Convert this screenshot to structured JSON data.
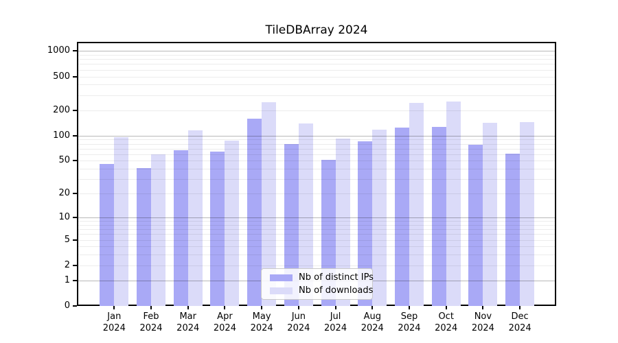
{
  "title": "TileDBArray 2024",
  "chart_data": {
    "type": "bar",
    "title": "TileDBArray 2024",
    "y_scale": "log10(value+1)",
    "categories": [
      "Jan",
      "Feb",
      "Mar",
      "Apr",
      "May",
      "Jun",
      "Jul",
      "Aug",
      "Sep",
      "Oct",
      "Nov",
      "Dec"
    ],
    "x_year": "2024",
    "series": [
      {
        "name": "Nb of distinct IPs",
        "color": "#a9a9f6",
        "values": [
          46,
          41,
          67,
          64,
          159,
          79,
          51,
          85,
          125,
          127,
          78,
          61
        ]
      },
      {
        "name": "Nb of downloads",
        "color": "#dbdbf9",
        "values": [
          96,
          60,
          115,
          87,
          247,
          138,
          92,
          118,
          244,
          252,
          141,
          145
        ]
      }
    ],
    "y_ticks": [
      0,
      1,
      2,
      5,
      10,
      20,
      50,
      100,
      200,
      500,
      1000
    ],
    "major_gridlines": [
      1,
      10,
      100,
      1000
    ],
    "minor_gridlines": [
      2,
      3,
      4,
      5,
      6,
      7,
      8,
      9,
      20,
      30,
      40,
      50,
      60,
      70,
      80,
      90,
      200,
      300,
      400,
      500,
      600,
      700,
      800,
      900
    ],
    "ylim": [
      0,
      1280
    ],
    "grid": true,
    "legend_position": "bottom-center"
  },
  "colors": {
    "bar_distinct_ips": "#a9a9f6",
    "bar_downloads": "#dbdbf9",
    "minor_gridline": "rgba(0,0,0,0.075)",
    "major_gridline": "rgba(0,0,0,0.28)",
    "spine": "#000000",
    "background": "#ffffff",
    "legend_border": "#c9c9c9"
  }
}
